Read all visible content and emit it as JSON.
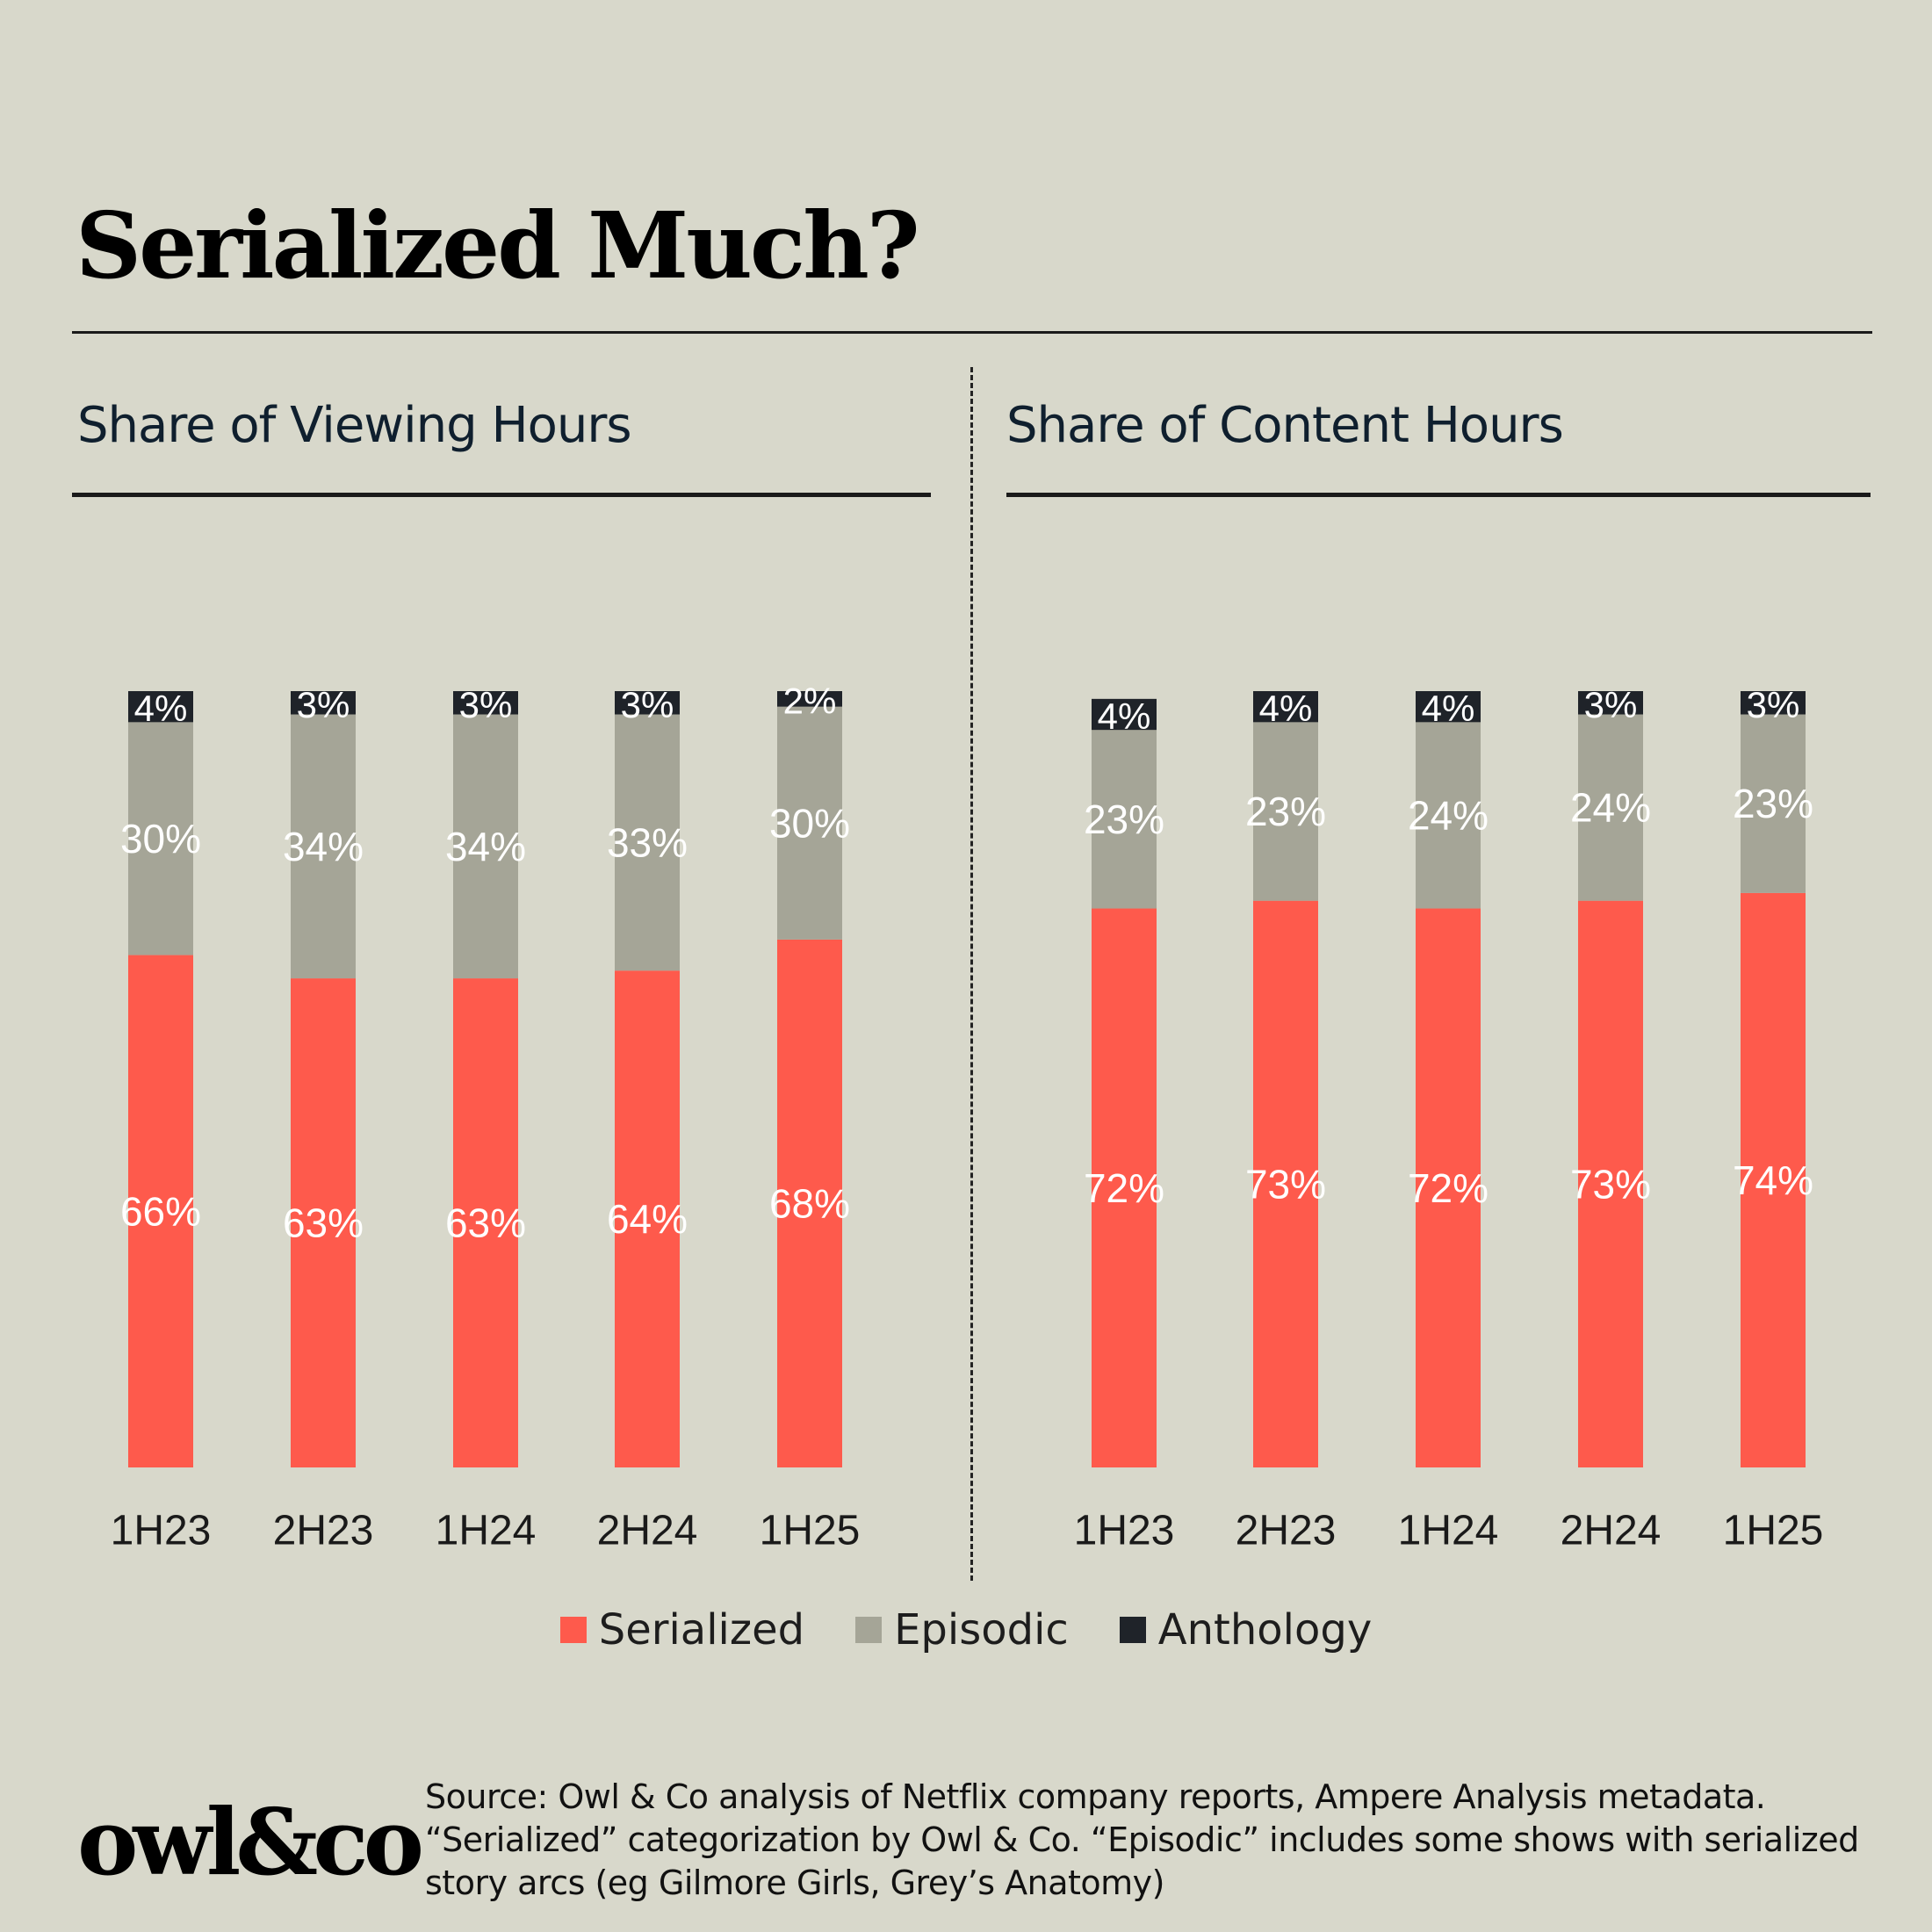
{
  "title": "Serialized Much?",
  "subtitles": {
    "left": "Share of Viewing Hours",
    "right": "Share of Content Hours"
  },
  "legend": [
    {
      "label": "Serialized",
      "color": "#fe5a4c"
    },
    {
      "label": "Episodic",
      "color": "#a5a597"
    },
    {
      "label": "Anthology",
      "color": "#1f2329"
    }
  ],
  "logo": "owl&co",
  "source": "Source: Owl & Co analysis of Netflix company reports, Ampere Analysis metadata. “Serialized” categorization by Owl & Co. “Episodic” includes some shows with serialized story arcs (eg Gilmore Girls, Grey’s Anatomy)",
  "chart_data": [
    {
      "type": "bar",
      "stacked": true,
      "title": "Share of Viewing Hours",
      "categories": [
        "1H23",
        "2H23",
        "1H24",
        "2H24",
        "1H25"
      ],
      "series": [
        {
          "name": "Serialized",
          "values": [
            66,
            63,
            63,
            64,
            68
          ],
          "labels": [
            "66%",
            "63%",
            "63%",
            "64%",
            "68%"
          ],
          "color": "#fe5a4c"
        },
        {
          "name": "Episodic",
          "values": [
            30,
            34,
            34,
            33,
            30
          ],
          "labels": [
            "30%",
            "34%",
            "34%",
            "33%",
            "30%"
          ],
          "color": "#a5a597"
        },
        {
          "name": "Anthology",
          "values": [
            4,
            3,
            3,
            3,
            2
          ],
          "labels": [
            "4%",
            "3%",
            "3%",
            "3%",
            "2%"
          ],
          "color": "#1f2329"
        }
      ],
      "ylim": [
        0,
        100
      ]
    },
    {
      "type": "bar",
      "stacked": true,
      "title": "Share of Content Hours",
      "categories": [
        "1H23",
        "2H23",
        "1H24",
        "2H24",
        "1H25"
      ],
      "series": [
        {
          "name": "Serialized",
          "values": [
            72,
            73,
            72,
            73,
            74
          ],
          "labels": [
            "72%",
            "73%",
            "72%",
            "73%",
            "74%"
          ],
          "color": "#fe5a4c"
        },
        {
          "name": "Episodic",
          "values": [
            23,
            23,
            24,
            24,
            23
          ],
          "labels": [
            "23%",
            "23%",
            "24%",
            "24%",
            "23%"
          ],
          "color": "#a5a597"
        },
        {
          "name": "Anthology",
          "values": [
            4,
            4,
            4,
            3,
            3
          ],
          "labels": [
            "4%",
            "4%",
            "4%",
            "3%",
            "3%"
          ],
          "color": "#1f2329"
        }
      ],
      "ylim": [
        0,
        100
      ]
    }
  ]
}
